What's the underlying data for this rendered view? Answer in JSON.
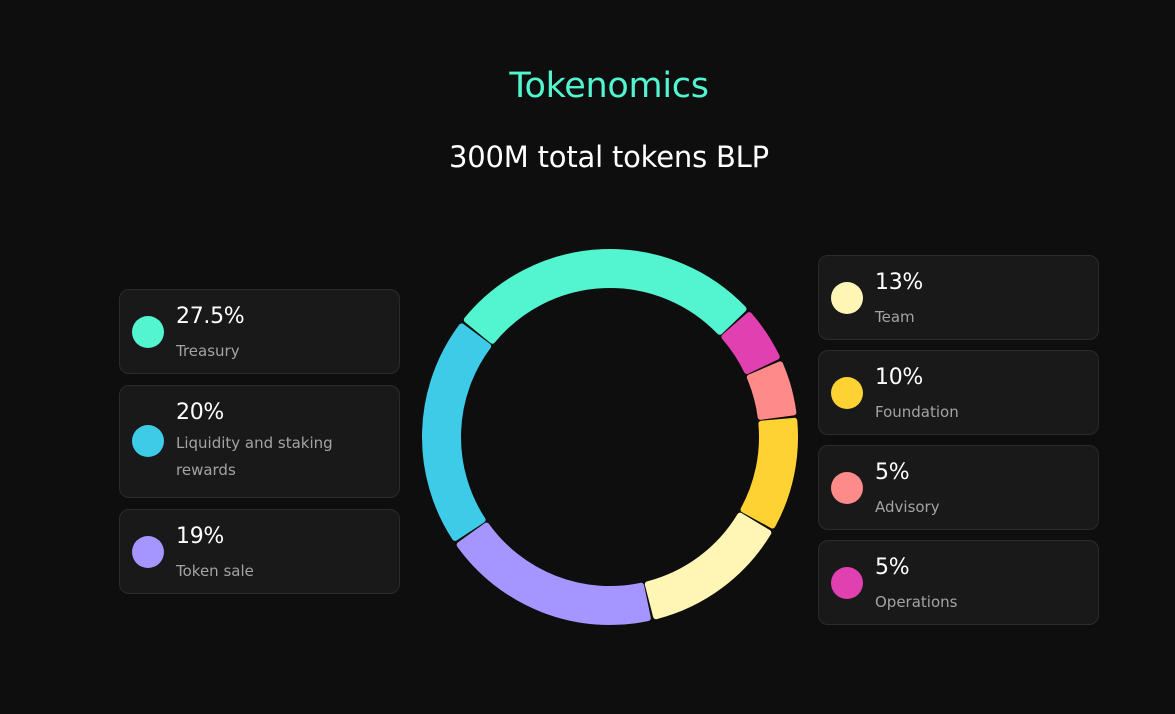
{
  "header": {
    "title": "Tokenomics",
    "subtitle": "300M total tokens BLP"
  },
  "chart_data": {
    "type": "pie",
    "variant": "donut",
    "categories": [
      "Treasury",
      "Operations",
      "Advisory",
      "Foundation",
      "Team",
      "Token sale",
      "Liquidity and staking rewards"
    ],
    "values": [
      27.5,
      5,
      5,
      10,
      13,
      19,
      20
    ],
    "colors": [
      "#52f5cf",
      "#e040b0",
      "#ff8a8a",
      "#ffd233",
      "#fff6b5",
      "#a596ff",
      "#3ecbe8"
    ],
    "legend_left": [
      {
        "percent": "27.5%",
        "label": "Treasury",
        "color": "#52f5cf"
      },
      {
        "percent": "20%",
        "label": "Liquidity and staking rewards",
        "color": "#3ecbe8"
      },
      {
        "percent": "19%",
        "label": "Token sale",
        "color": "#a596ff"
      }
    ],
    "legend_right": [
      {
        "percent": "13%",
        "label": "Team",
        "color": "#fff6b5"
      },
      {
        "percent": "10%",
        "label": "Foundation",
        "color": "#ffd233"
      },
      {
        "percent": "5%",
        "label": "Advisory",
        "color": "#ff8a8a"
      },
      {
        "percent": "5%",
        "label": "Operations",
        "color": "#e040b0"
      }
    ]
  },
  "colors": {
    "background": "#0e0e0e",
    "accent": "#52f5cf",
    "card": "#191919"
  }
}
